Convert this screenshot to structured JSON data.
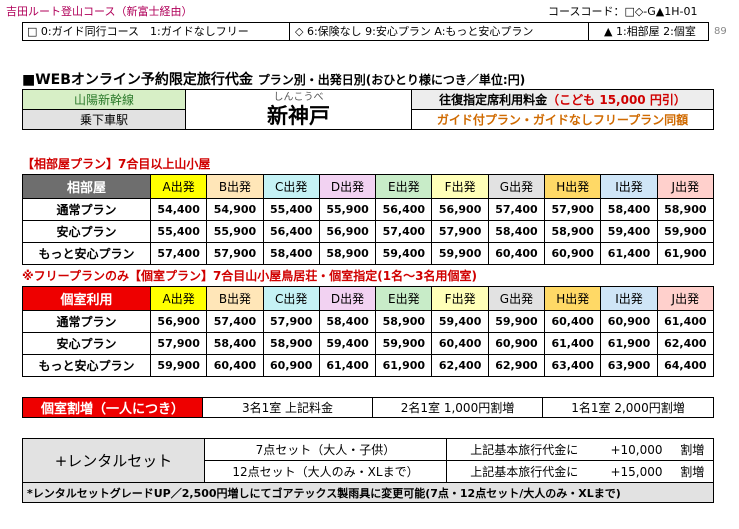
{
  "header": {
    "title": "吉田ルート登山コース（新富士経由）",
    "course_code": "コースコード：□◇-G▲1H-01",
    "legend": [
      "□ 0:ガイド同行コース　1:ガイドなしフリー",
      "◇ 6:保険なし 9:安心プラン A:もっと安心プラン",
      "▲ 1:相部屋 2:個室"
    ],
    "page_num": "89"
  },
  "headline": {
    "main": "■WEBオンライン予約限定旅行代金",
    "sub": "プラン別・出発日別(おひとり様につき／単位:円)"
  },
  "station": {
    "line": "山陽新幹線",
    "label": "乗下車駅",
    "ruby": "しんこうべ",
    "name": "新神戸",
    "note1_prefix": "往復指定席利用料金",
    "note1_child": "（こども 15,000 円引）",
    "note2": "ガイド付プラン・ガイドなしフリープラン同額"
  },
  "departures": [
    "A出発",
    "B出発",
    "C出発",
    "D出発",
    "E出発",
    "F出発",
    "G出発",
    "H出発",
    "I出発",
    "J出発"
  ],
  "shared": {
    "section": "【相部屋プラン】7合目以上山小屋",
    "header": "相部屋",
    "rows": [
      {
        "plan": "通常プラン",
        "prices": [
          "54,400",
          "54,900",
          "55,400",
          "55,900",
          "56,400",
          "56,900",
          "57,400",
          "57,900",
          "58,400",
          "58,900"
        ]
      },
      {
        "plan": "安心プラン",
        "prices": [
          "55,400",
          "55,900",
          "56,400",
          "56,900",
          "57,400",
          "57,900",
          "58,400",
          "58,900",
          "59,400",
          "59,900"
        ]
      },
      {
        "plan": "もっと安心プラン",
        "prices": [
          "57,400",
          "57,900",
          "58,400",
          "58,900",
          "59,400",
          "59,900",
          "60,400",
          "60,900",
          "61,400",
          "61,900"
        ]
      }
    ]
  },
  "private": {
    "section": "※フリープランのみ【個室プラン】7合目山小屋鳥居荘・個室指定(1名～3名用個室)",
    "header": "個室利用",
    "rows": [
      {
        "plan": "通常プラン",
        "prices": [
          "56,900",
          "57,400",
          "57,900",
          "58,400",
          "58,900",
          "59,400",
          "59,900",
          "60,400",
          "60,900",
          "61,400"
        ]
      },
      {
        "plan": "安心プラン",
        "prices": [
          "57,900",
          "58,400",
          "58,900",
          "59,400",
          "59,900",
          "60,400",
          "60,900",
          "61,400",
          "61,900",
          "62,400"
        ]
      },
      {
        "plan": "もっと安心プラン",
        "prices": [
          "59,900",
          "60,400",
          "60,900",
          "61,400",
          "61,900",
          "62,400",
          "62,900",
          "63,400",
          "63,900",
          "64,400"
        ]
      }
    ]
  },
  "surcharge": {
    "label": "個室割増（一人につき）",
    "items": [
      "3名1室 上記料金",
      "2名1室 1,000円割増",
      "1名1室 2,000円割増"
    ]
  },
  "rental": {
    "label": "+レンタルセット",
    "rows": [
      {
        "set": "7点セット（大人・子供）",
        "note": "上記基本旅行代金に",
        "amount": "+10,000",
        "suffix": "割増"
      },
      {
        "set": "12点セット（大人のみ・XLまで）",
        "note": "上記基本旅行代金に",
        "amount": "+15,000",
        "suffix": "割増"
      }
    ],
    "footnote": "*レンタルセットグレードUP／2,500円増しにてゴアテックス製雨具に変更可能(7点・12点セット/大人のみ・XLまで)"
  }
}
